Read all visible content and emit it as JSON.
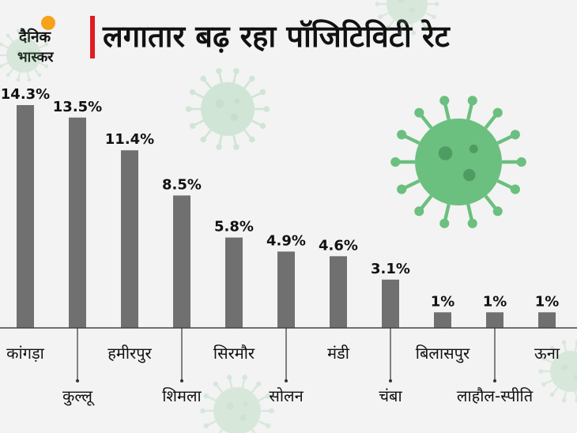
{
  "logo": {
    "line1": "दैनिक",
    "line2": "भास्कर"
  },
  "title": "लगातार बढ़ रहा पॉजिटिविटी रेट",
  "colors": {
    "bar": "#707070",
    "accent": "#e11b22",
    "virus": "#6bbf7f",
    "logo_sun": "#f7a21b"
  },
  "chart_data": {
    "type": "bar",
    "categories": [
      "कांगड़ा",
      "कुल्लू",
      "हमीरपुर",
      "शिमला",
      "सिरमौर",
      "सोलन",
      "मंडी",
      "चंबा",
      "बिलासपुर",
      "लाहौल-स्पीति",
      "ऊना"
    ],
    "values": [
      14.3,
      13.5,
      11.4,
      8.5,
      5.8,
      4.9,
      4.6,
      3.1,
      1,
      1,
      1
    ],
    "data_labels": [
      "14.3%",
      "13.5%",
      "11.4%",
      "8.5%",
      "5.8%",
      "4.9%",
      "4.6%",
      "3.1%",
      "1%",
      "1%",
      "1%"
    ],
    "title": "लगातार बढ़ रहा पॉजिटिविटी रेट",
    "xlabel": "",
    "ylabel": "",
    "ylim": [
      0,
      14.3
    ],
    "grid": false,
    "legend": "none"
  }
}
